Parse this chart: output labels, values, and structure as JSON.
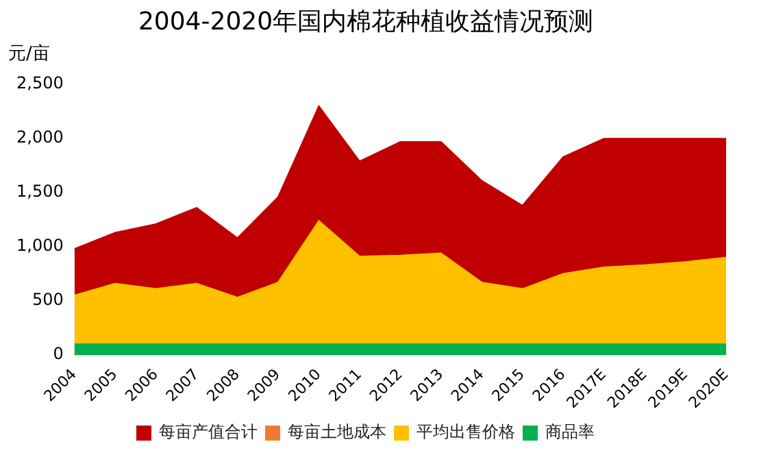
{
  "chart_data": {
    "type": "area",
    "title": "2004-2020年国内棉花种植收益情况预测",
    "ylabel": "元/亩",
    "categories": [
      "2004",
      "2005",
      "2006",
      "2007",
      "2008",
      "2009",
      "2010",
      "2011",
      "2012",
      "2013",
      "2014",
      "2015",
      "2016",
      "2017E",
      "2018E",
      "2019E",
      "2020E"
    ],
    "series": [
      {
        "name": "每亩产值合计",
        "color": "#c00000",
        "values": [
          980,
          1130,
          1210,
          1360,
          1080,
          1460,
          2300,
          1790,
          1970,
          1970,
          1610,
          1380,
          1830,
          2000,
          2000,
          2000,
          2000
        ]
      },
      {
        "name": "每亩土地成本",
        "color": "#ed7d31",
        "values": [
          null,
          null,
          null,
          null,
          null,
          null,
          null,
          null,
          null,
          null,
          null,
          null,
          null,
          null,
          null,
          null,
          null
        ]
      },
      {
        "name": "平均出售价格",
        "color": "#ffc000",
        "values": [
          550,
          660,
          610,
          660,
          530,
          670,
          1240,
          910,
          920,
          940,
          670,
          610,
          750,
          810,
          830,
          860,
          900
        ]
      },
      {
        "name": "商品率",
        "color": "#00b050",
        "values": [
          100,
          100,
          100,
          100,
          100,
          100,
          100,
          100,
          100,
          100,
          100,
          100,
          100,
          100,
          100,
          100,
          100
        ]
      }
    ],
    "ylim": [
      0,
      2500
    ],
    "yticks": [
      0,
      500,
      {
        "value": 1000,
        "label": "1,000"
      },
      {
        "value": 1500,
        "label": "1,500"
      },
      {
        "value": 2000,
        "label": "2,000"
      },
      {
        "value": 2500,
        "label": "2,500"
      }
    ],
    "grid": false,
    "legend": "bottom"
  }
}
